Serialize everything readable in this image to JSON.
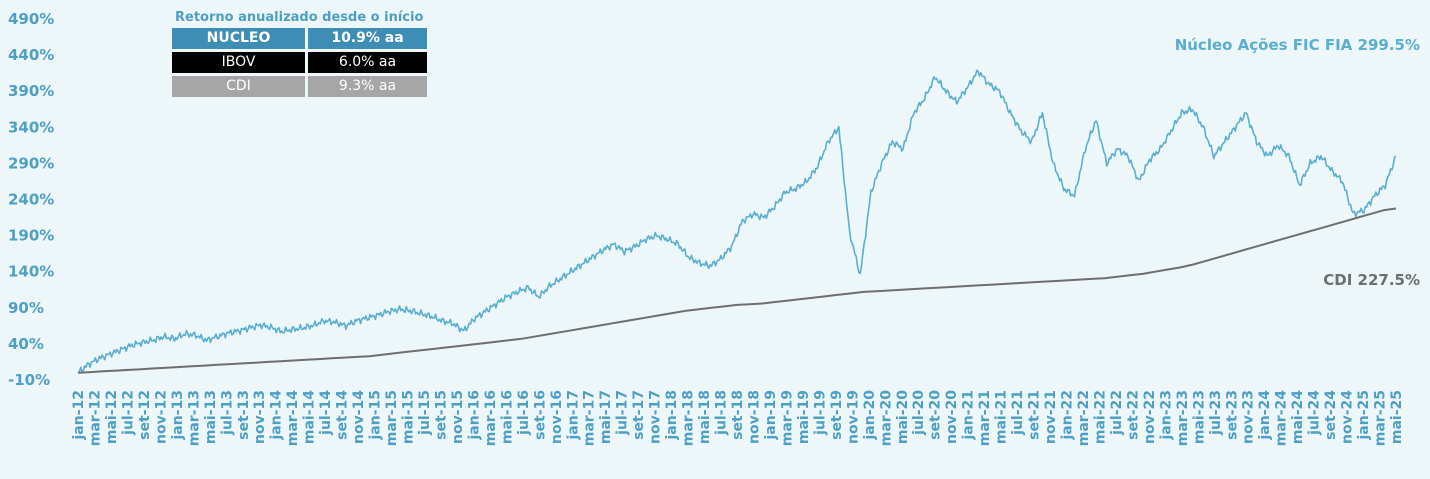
{
  "chart_data": {
    "type": "line",
    "y_tick_labels": [
      "490%",
      "440%",
      "390%",
      "340%",
      "290%",
      "240%",
      "190%",
      "140%",
      "90%",
      "40%",
      "-10%"
    ],
    "ylim": [
      -10,
      490
    ],
    "x_tick_labels": [
      "jan-12",
      "mar-12",
      "mai-12",
      "jul-12",
      "set-12",
      "nov-12",
      "jan-13",
      "mar-13",
      "mai-13",
      "jul-13",
      "set-13",
      "nov-13",
      "jan-14",
      "mar-14",
      "mai-14",
      "jul-14",
      "set-14",
      "nov-14",
      "jan-15",
      "mar-15",
      "mai-15",
      "jul-15",
      "set-15",
      "nov-15",
      "jan-16",
      "mar-16",
      "mai-16",
      "jul-16",
      "set-16",
      "nov-16",
      "jan-17",
      "mar-17",
      "mai-17",
      "jul-17",
      "set-17",
      "nov-17",
      "jan-18",
      "mar-18",
      "mai-18",
      "jul-18",
      "set-18",
      "nov-18",
      "jan-19",
      "mar-19",
      "mai-19",
      "jul-19",
      "set-19",
      "nov-19",
      "jan-20",
      "mar-20",
      "mai-20",
      "jul-20",
      "set-20",
      "nov-20",
      "jan-21",
      "mar-21",
      "mai-21",
      "jul-21",
      "set-21",
      "nov-21",
      "jan-22",
      "mar-22",
      "mai-22",
      "jul-22",
      "set-22",
      "nov-22",
      "jan-23",
      "mar-23",
      "mai-23",
      "jul-23",
      "set-23",
      "nov-23",
      "jan-24",
      "mar-24",
      "mai-24",
      "jul-24",
      "set-24",
      "nov-24",
      "jan-25",
      "mar-25",
      "mai-25"
    ],
    "grid": false,
    "series": [
      {
        "name": "Núcleo Ações FIC FIA",
        "end_label": "299.5%",
        "color": "#5aaed0",
        "values": [
          0,
          12,
          20,
          26,
          32,
          38,
          42,
          45,
          50,
          47,
          54,
          52,
          45,
          50,
          55,
          58,
          62,
          66,
          63,
          57,
          60,
          62,
          66,
          72,
          70,
          65,
          72,
          76,
          80,
          85,
          88,
          86,
          82,
          78,
          72,
          68,
          58,
          75,
          85,
          95,
          105,
          112,
          118,
          105,
          120,
          130,
          140,
          150,
          160,
          170,
          178,
          168,
          175,
          185,
          190,
          185,
          178,
          160,
          152,
          148,
          158,
          175,
          210,
          220,
          215,
          230,
          250,
          255,
          265,
          285,
          320,
          340,
          195,
          135,
          250,
          290,
          320,
          310,
          360,
          380,
          410,
          390,
          375,
          395,
          418,
          400,
          390,
          360,
          335,
          320,
          360,
          290,
          255,
          245,
          310,
          350,
          290,
          310,
          300,
          265,
          295,
          310,
          335,
          360,
          365,
          340,
          300,
          320,
          340,
          360,
          320,
          300,
          315,
          300,
          260,
          290,
          300,
          280,
          265,
          220,
          225,
          245,
          260,
          300
        ]
      },
      {
        "name": "CDI",
        "end_label": "227.5%",
        "color": "#6e6e6e",
        "values": [
          0,
          1,
          2,
          3,
          4,
          5,
          6,
          7,
          8,
          9,
          10,
          11,
          12,
          13,
          14,
          15,
          16,
          17,
          18,
          19,
          20,
          21,
          22,
          23,
          25,
          27,
          29,
          31,
          33,
          35,
          37,
          39,
          41,
          43,
          45,
          47,
          50,
          53,
          56,
          59,
          62,
          65,
          68,
          71,
          74,
          77,
          80,
          83,
          86,
          88,
          90,
          92,
          94,
          95,
          96,
          98,
          100,
          102,
          104,
          106,
          108,
          110,
          112,
          113,
          114,
          115,
          116,
          117,
          118,
          119,
          120,
          121,
          122,
          123,
          124,
          125,
          126,
          127,
          128,
          129,
          130,
          131,
          133,
          135,
          137,
          140,
          143,
          146,
          150,
          155,
          160,
          165,
          170,
          175,
          180,
          185,
          190,
          195,
          200,
          205,
          210,
          215,
          220,
          225,
          227.5
        ]
      }
    ]
  },
  "returns_table": {
    "title": "Retorno anualizado desde o início",
    "rows": [
      {
        "name": "NUCLEO",
        "value": "10.9% aa"
      },
      {
        "name": "IBOV",
        "value": "6.0% aa"
      },
      {
        "name": "CDI",
        "value": "9.3% aa"
      }
    ]
  },
  "colors": {
    "axis_text": "#4f9fc4",
    "nucleo_line": "#5aaed0",
    "cdi_line": "#6e6e6e",
    "cdi_label": "#6e6e6e",
    "background": "#edf6f9"
  }
}
